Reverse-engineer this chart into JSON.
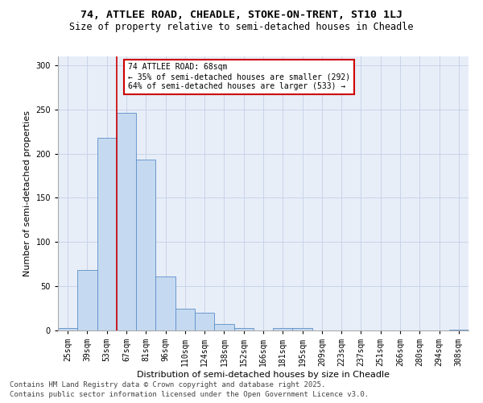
{
  "title1": "74, ATTLEE ROAD, CHEADLE, STOKE-ON-TRENT, ST10 1LJ",
  "title2": "Size of property relative to semi-detached houses in Cheadle",
  "xlabel": "Distribution of semi-detached houses by size in Cheadle",
  "ylabel": "Number of semi-detached properties",
  "categories": [
    "25sqm",
    "39sqm",
    "53sqm",
    "67sqm",
    "81sqm",
    "96sqm",
    "110sqm",
    "124sqm",
    "138sqm",
    "152sqm",
    "166sqm",
    "181sqm",
    "195sqm",
    "209sqm",
    "223sqm",
    "237sqm",
    "251sqm",
    "266sqm",
    "280sqm",
    "294sqm",
    "308sqm"
  ],
  "values": [
    3,
    68,
    218,
    246,
    193,
    61,
    25,
    20,
    7,
    3,
    0,
    3,
    3,
    0,
    0,
    0,
    0,
    0,
    0,
    0,
    1
  ],
  "bar_color": "#c5d9f0",
  "bar_edge_color": "#5b8fc9",
  "grid_color": "#c8d4e8",
  "vline_x_index": 3,
  "vline_color": "#cc0000",
  "annotation_text": "74 ATTLEE ROAD: 68sqm\n← 35% of semi-detached houses are smaller (292)\n64% of semi-detached houses are larger (533) →",
  "annotation_box_color": "#ffffff",
  "annotation_box_edge": "#cc0000",
  "bg_color": "#e8eef8",
  "ylim": [
    0,
    310
  ],
  "yticks": [
    0,
    50,
    100,
    150,
    200,
    250,
    300
  ],
  "footer1": "Contains HM Land Registry data © Crown copyright and database right 2025.",
  "footer2": "Contains public sector information licensed under the Open Government Licence v3.0.",
  "title1_fontsize": 9.5,
  "title2_fontsize": 8.5,
  "axis_label_fontsize": 8,
  "tick_fontsize": 7,
  "annotation_fontsize": 7,
  "footer_fontsize": 6.5
}
